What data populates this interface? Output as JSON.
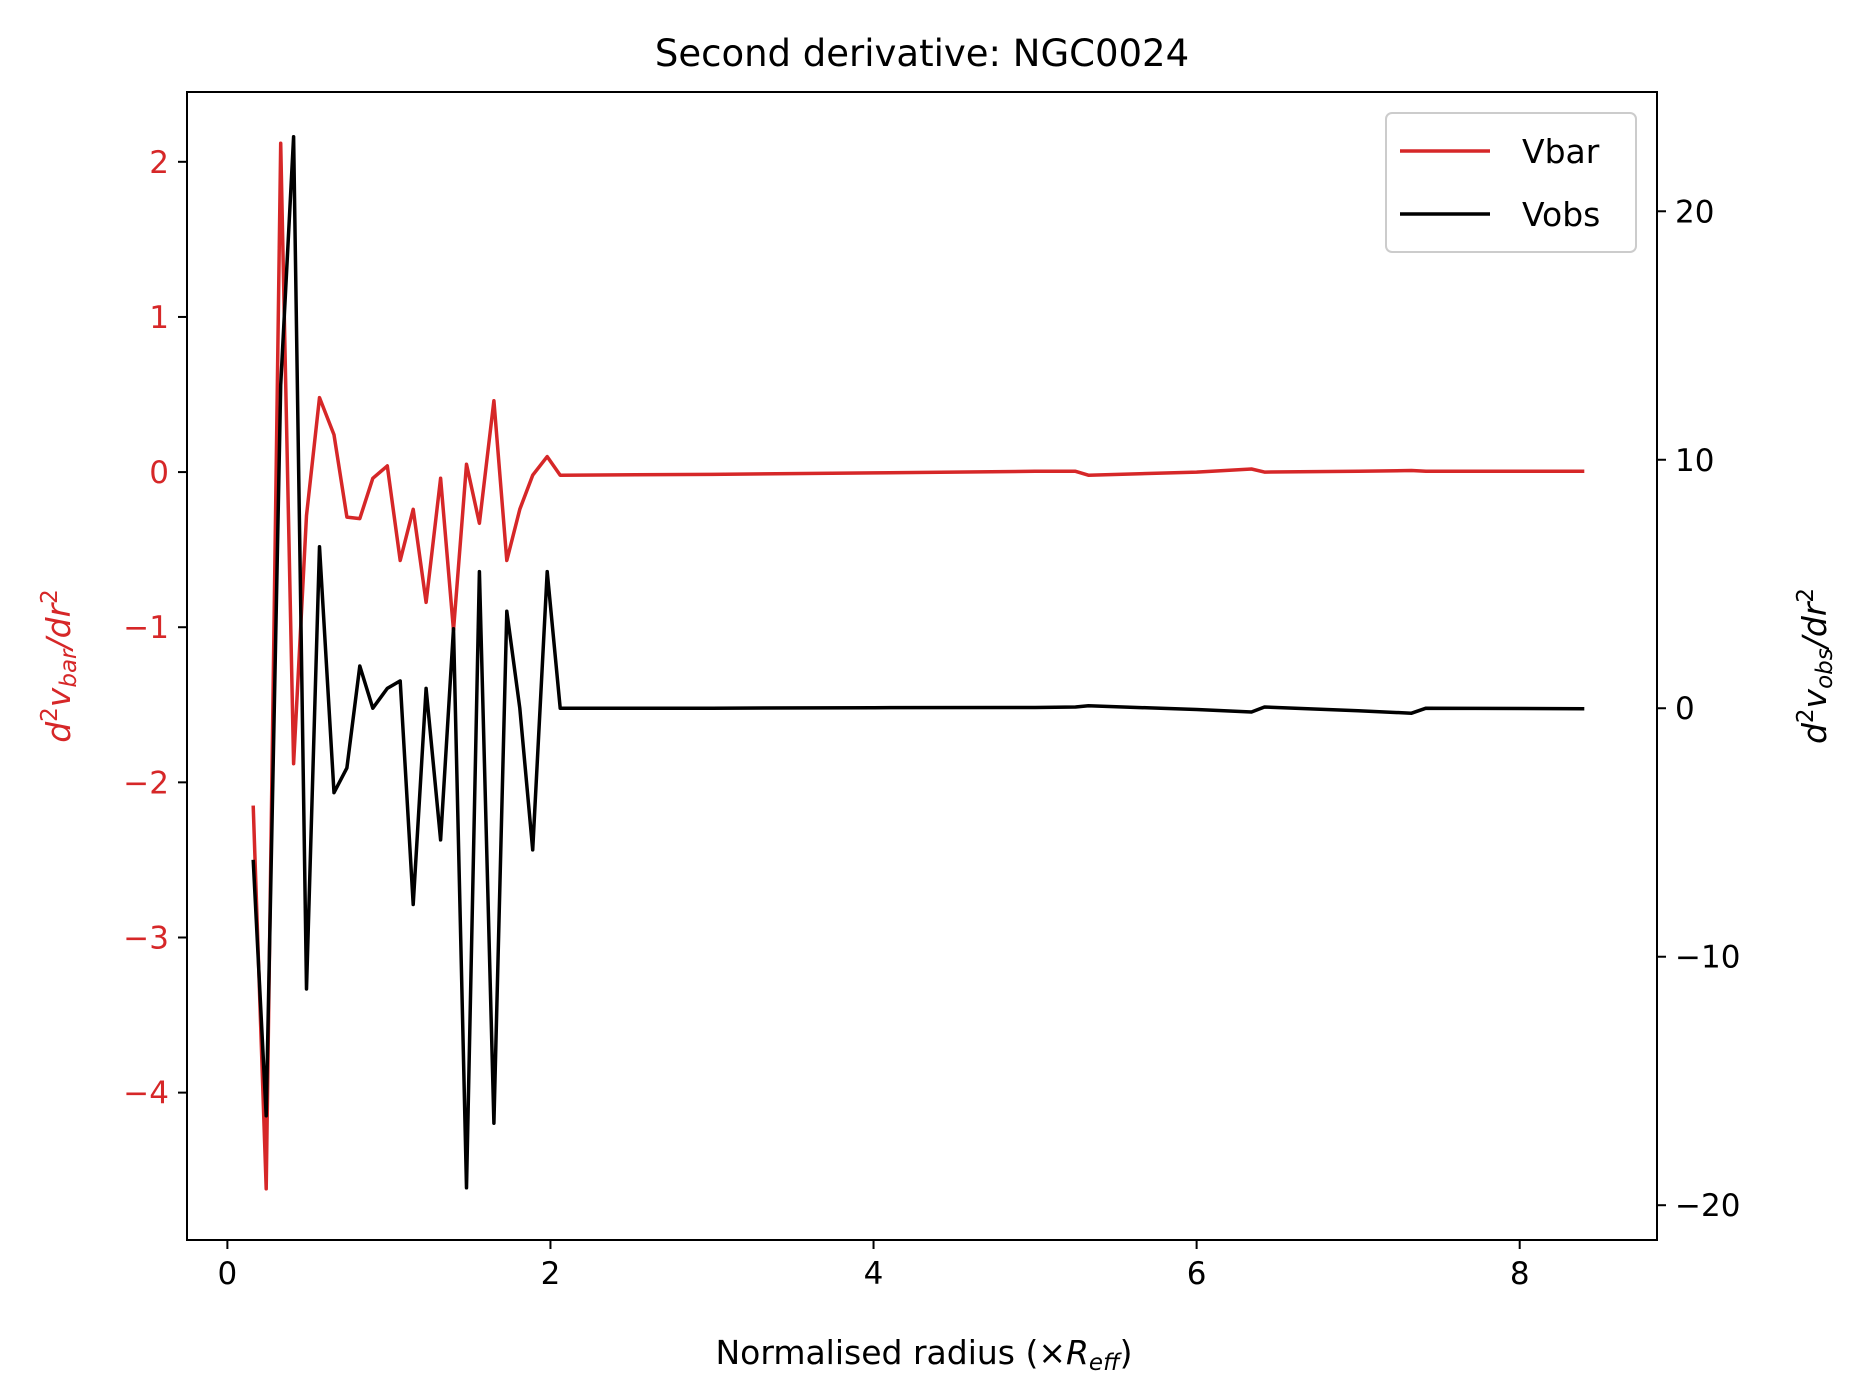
{
  "chart_data": {
    "type": "line",
    "title": "Second derivative: NGC0024",
    "xlabel_main": "Normalised radius (×",
    "xlabel_var": "R",
    "xlabel_sub": "eff",
    "xlabel_close": ")",
    "ylabel_left": {
      "pre": "d",
      "sup1": "2",
      "v": "v",
      "sub": "bar",
      "mid": "/dr",
      "sup2": "2"
    },
    "ylabel_right": {
      "pre": "d",
      "sup1": "2",
      "v": "v",
      "sub": "obs",
      "mid": "/dr",
      "sup2": "2"
    },
    "xlim": [
      -0.25,
      8.85
    ],
    "ylim_left": [
      -4.95,
      2.45
    ],
    "ylim_right": [
      -21.4,
      24.8
    ],
    "xticks": [
      0,
      2,
      4,
      6,
      8
    ],
    "xtick_labels": [
      "0",
      "2",
      "4",
      "6",
      "8"
    ],
    "yticks_left": [
      -4,
      -3,
      -2,
      -1,
      0,
      1,
      2
    ],
    "yticks_left_labels": [
      "−4",
      "−3",
      "−2",
      "−1",
      "0",
      "1",
      "2"
    ],
    "yticks_right": [
      -20,
      -10,
      0,
      10,
      20
    ],
    "yticks_right_labels": [
      "−20",
      "−10",
      "0",
      "10",
      "20"
    ],
    "legend_position": "upper right",
    "colors": {
      "vbar": "#d62728",
      "vobs": "#000000",
      "left_axis": "#d62728",
      "right_axis": "#000000"
    },
    "series": [
      {
        "name": "Vbar",
        "axis": "left",
        "x": [
          0.16,
          0.24,
          0.33,
          0.41,
          0.49,
          0.57,
          0.66,
          0.74,
          0.82,
          0.9,
          0.99,
          1.07,
          1.15,
          1.23,
          1.32,
          1.4,
          1.48,
          1.56,
          1.65,
          1.73,
          1.81,
          1.89,
          1.98,
          2.06,
          3.0,
          4.0,
          5.0,
          5.25,
          5.33,
          6.0,
          6.34,
          6.42,
          7.0,
          7.33,
          7.42,
          8.4
        ],
        "y": [
          -2.15,
          -4.62,
          2.12,
          -1.88,
          -0.28,
          0.48,
          0.24,
          -0.29,
          -0.3,
          -0.04,
          0.04,
          -0.57,
          -0.24,
          -0.84,
          -0.04,
          -1.02,
          0.05,
          -0.33,
          0.46,
          -0.57,
          -0.24,
          -0.02,
          0.1,
          -0.02,
          -0.015,
          -0.005,
          0.005,
          0.005,
          -0.02,
          0.0,
          0.02,
          0.0,
          0.005,
          0.01,
          0.005,
          0.005
        ]
      },
      {
        "name": "Vobs",
        "axis": "right",
        "x": [
          0.16,
          0.24,
          0.33,
          0.41,
          0.49,
          0.57,
          0.66,
          0.74,
          0.82,
          0.9,
          0.99,
          1.07,
          1.15,
          1.23,
          1.32,
          1.4,
          1.48,
          1.56,
          1.65,
          1.73,
          1.81,
          1.89,
          1.98,
          2.06,
          3.0,
          4.0,
          5.0,
          5.25,
          5.33,
          6.0,
          6.34,
          6.42,
          7.0,
          7.33,
          7.42,
          8.4
        ],
        "y": [
          -6.1,
          -16.4,
          13.0,
          23.0,
          -11.3,
          6.5,
          -3.4,
          -2.4,
          1.7,
          0.0,
          0.8,
          1.1,
          -7.9,
          0.8,
          -5.3,
          3.2,
          -19.3,
          5.5,
          -16.7,
          3.9,
          0.0,
          -5.7,
          5.5,
          0.0,
          0.0,
          0.02,
          0.03,
          0.05,
          0.1,
          -0.05,
          -0.15,
          0.05,
          -0.1,
          -0.2,
          0.0,
          -0.02
        ]
      }
    ]
  }
}
